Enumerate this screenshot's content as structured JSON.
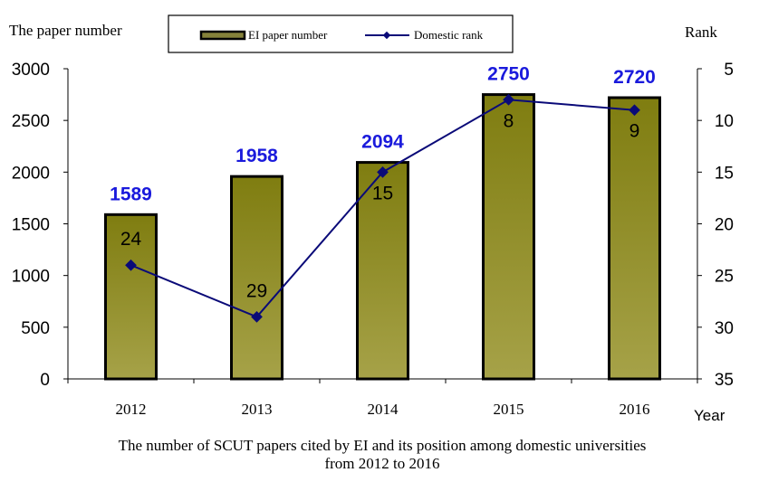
{
  "chart_data": {
    "type": "bar",
    "title": "The number of SCUT papers cited by EI and its position among domestic universities from 2012 to 2016",
    "title_lines": [
      "The number of SCUT papers cited by EI and its position among domestic universities",
      "from 2012 to 2016"
    ],
    "categories": [
      "2012",
      "2013",
      "2014",
      "2015",
      "2016"
    ],
    "xlabel": "Year",
    "ylabel": "The paper number",
    "y2label": "Rank",
    "ylim": [
      0,
      3000
    ],
    "y_ticks": [
      0,
      500,
      1000,
      1500,
      2000,
      2500,
      3000
    ],
    "y2lim": [
      5,
      35
    ],
    "y2_inverted": true,
    "y2_ticks": [
      5,
      10,
      15,
      20,
      25,
      30,
      35
    ],
    "legend_placement": "top-center",
    "grid": false,
    "series": [
      {
        "name": "EI paper number",
        "type": "bar",
        "axis": "left",
        "values": [
          1589,
          1958,
          2094,
          2750,
          2720
        ],
        "color_top": "#7f7d10",
        "color_bottom": "#a6a248",
        "label_color": "#1a1adc"
      },
      {
        "name": "Domestic rank",
        "type": "line",
        "axis": "right",
        "values": [
          24,
          29,
          15,
          8,
          9
        ],
        "color": "#0a0a78",
        "label_color": "#000000"
      }
    ]
  }
}
